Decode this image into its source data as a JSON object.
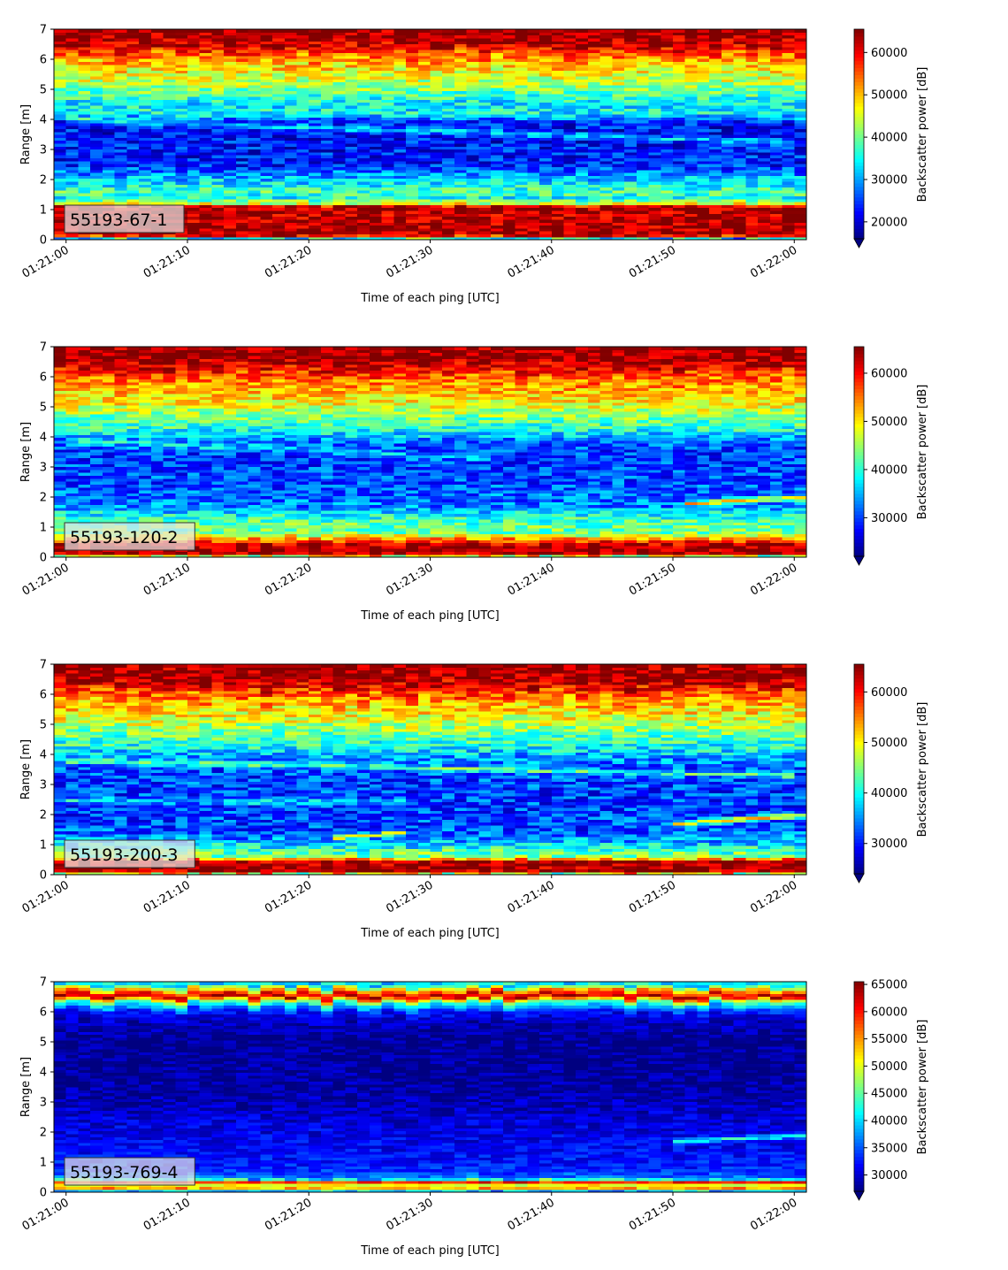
{
  "chart_data": [
    {
      "type": "heatmap",
      "label": "55193-67-1",
      "xlabel": "Time of each ping [UTC]",
      "ylabel": "Range [m]",
      "x_ticks": [
        "01:21:00",
        "01:21:10",
        "01:21:20",
        "01:21:30",
        "01:21:40",
        "01:21:50",
        "01:22:00"
      ],
      "x_range_seconds": [
        -1,
        61
      ],
      "y_ticks": [
        0,
        1,
        2,
        3,
        4,
        5,
        6,
        7
      ],
      "ylim": [
        0,
        7
      ],
      "colorbar": {
        "label": "Backscatter power [dB]",
        "vmin": 16000,
        "vmax": 65500,
        "ticks": [
          20000,
          30000,
          40000,
          50000,
          60000
        ],
        "extend": "min"
      },
      "profile_stops": [
        [
          0.0,
          0.1
        ],
        [
          0.15,
          0.96
        ],
        [
          0.85,
          0.94
        ],
        [
          1.1,
          0.97
        ],
        [
          1.2,
          0.6
        ],
        [
          1.4,
          0.38
        ],
        [
          1.6,
          0.45
        ],
        [
          1.9,
          0.35
        ],
        [
          2.1,
          0.3
        ],
        [
          2.5,
          0.15
        ],
        [
          3.5,
          0.13
        ],
        [
          3.9,
          0.14
        ],
        [
          4.2,
          0.38
        ],
        [
          4.5,
          0.36
        ],
        [
          4.8,
          0.43
        ],
        [
          5.1,
          0.53
        ],
        [
          5.5,
          0.6
        ],
        [
          5.9,
          0.7
        ],
        [
          6.2,
          0.8
        ],
        [
          6.4,
          0.92
        ],
        [
          7.0,
          0.99
        ]
      ],
      "ridges": [
        {
          "t0": 0,
          "r0": 4.0,
          "t1": 60,
          "r1": 3.25,
          "amp": 0.18,
          "width": 0.1
        }
      ],
      "noise": 0.12,
      "seed": 11
    },
    {
      "type": "heatmap",
      "label": "55193-120-2",
      "xlabel": "Time of each ping [UTC]",
      "ylabel": "Range [m]",
      "x_ticks": [
        "01:21:00",
        "01:21:10",
        "01:21:20",
        "01:21:30",
        "01:21:40",
        "01:21:50",
        "01:22:00"
      ],
      "x_range_seconds": [
        -1,
        61
      ],
      "y_ticks": [
        0,
        1,
        2,
        3,
        4,
        5,
        6,
        7
      ],
      "ylim": [
        0,
        7
      ],
      "colorbar": {
        "label": "Backscatter power [dB]",
        "vmin": 22000,
        "vmax": 65500,
        "ticks": [
          30000,
          40000,
          50000,
          60000
        ],
        "extend": "min"
      },
      "profile_stops": [
        [
          0.0,
          0.3
        ],
        [
          0.1,
          0.96
        ],
        [
          0.4,
          0.96
        ],
        [
          0.6,
          0.75
        ],
        [
          0.8,
          0.5
        ],
        [
          1.2,
          0.45
        ],
        [
          1.5,
          0.35
        ],
        [
          1.7,
          0.25
        ],
        [
          2.5,
          0.2
        ],
        [
          3.5,
          0.18
        ],
        [
          3.9,
          0.25
        ],
        [
          4.3,
          0.42
        ],
        [
          4.7,
          0.5
        ],
        [
          5.1,
          0.62
        ],
        [
          5.6,
          0.7
        ],
        [
          6.0,
          0.78
        ],
        [
          6.3,
          0.9
        ],
        [
          6.6,
          0.98
        ],
        [
          7.0,
          0.97
        ]
      ],
      "ridges": [
        {
          "t0": 0,
          "r0": 3.9,
          "t1": 35,
          "r1": 3.3,
          "amp": 0.12,
          "width": 0.12
        },
        {
          "t0": 51,
          "r0": 1.8,
          "t1": 61,
          "r1": 2.0,
          "amp": 0.45,
          "width": 0.08
        }
      ],
      "noise": 0.12,
      "seed": 23
    },
    {
      "type": "heatmap",
      "label": "55193-200-3",
      "xlabel": "Time of each ping [UTC]",
      "ylabel": "Range [m]",
      "x_ticks": [
        "01:21:00",
        "01:21:10",
        "01:21:20",
        "01:21:30",
        "01:21:40",
        "01:21:50",
        "01:22:00"
      ],
      "x_range_seconds": [
        -1,
        61
      ],
      "y_ticks": [
        0,
        1,
        2,
        3,
        4,
        5,
        6,
        7
      ],
      "ylim": [
        0,
        7
      ],
      "colorbar": {
        "label": "Backscatter power [dB]",
        "vmin": 24000,
        "vmax": 65500,
        "ticks": [
          30000,
          40000,
          50000,
          60000
        ],
        "extend": "min"
      },
      "profile_stops": [
        [
          0.0,
          0.3
        ],
        [
          0.1,
          0.97
        ],
        [
          0.45,
          0.96
        ],
        [
          0.6,
          0.5
        ],
        [
          0.8,
          0.45
        ],
        [
          1.1,
          0.3
        ],
        [
          1.5,
          0.2
        ],
        [
          2.5,
          0.18
        ],
        [
          3.5,
          0.2
        ],
        [
          3.9,
          0.28
        ],
        [
          4.3,
          0.4
        ],
        [
          4.7,
          0.48
        ],
        [
          5.1,
          0.58
        ],
        [
          5.6,
          0.68
        ],
        [
          6.0,
          0.78
        ],
        [
          6.3,
          0.92
        ],
        [
          6.6,
          0.98
        ],
        [
          7.0,
          0.97
        ]
      ],
      "ridges": [
        {
          "t0": 0,
          "r0": 3.8,
          "t1": 60,
          "r1": 3.3,
          "amp": 0.25,
          "width": 0.08
        },
        {
          "t0": 22,
          "r0": 1.25,
          "t1": 28,
          "r1": 1.4,
          "amp": 0.5,
          "width": 0.06
        },
        {
          "t0": 50,
          "r0": 1.7,
          "t1": 61,
          "r1": 2.0,
          "amp": 0.45,
          "width": 0.08
        },
        {
          "t0": 0,
          "r0": 2.5,
          "t1": 28,
          "r1": 2.4,
          "amp": 0.15,
          "width": 0.1
        }
      ],
      "noise": 0.13,
      "seed": 37
    },
    {
      "type": "heatmap",
      "label": "55193-769-4",
      "xlabel": "Time of each ping [UTC]",
      "ylabel": "Range [m]",
      "x_ticks": [
        "01:21:00",
        "01:21:10",
        "01:21:20",
        "01:21:30",
        "01:21:40",
        "01:21:50",
        "01:22:00"
      ],
      "x_range_seconds": [
        -1,
        61
      ],
      "y_ticks": [
        0,
        1,
        2,
        3,
        4,
        5,
        6,
        7
      ],
      "ylim": [
        0,
        7
      ],
      "colorbar": {
        "label": "Backscatter power [dB]",
        "vmin": 27000,
        "vmax": 65500,
        "ticks": [
          30000,
          35000,
          40000,
          45000,
          50000,
          55000,
          60000,
          65000
        ],
        "extend": "min"
      },
      "profile_stops": [
        [
          0.0,
          0.15
        ],
        [
          0.15,
          0.75
        ],
        [
          0.25,
          0.6
        ],
        [
          0.35,
          0.9
        ],
        [
          0.45,
          0.25
        ],
        [
          0.8,
          0.15
        ],
        [
          1.5,
          0.12
        ],
        [
          2.5,
          0.08
        ],
        [
          3.5,
          0.03
        ],
        [
          5.0,
          0.02
        ],
        [
          5.7,
          0.06
        ],
        [
          6.0,
          0.15
        ],
        [
          6.3,
          0.45
        ],
        [
          6.5,
          0.96
        ],
        [
          6.7,
          0.7
        ],
        [
          6.9,
          0.3
        ],
        [
          7.0,
          0.4
        ]
      ],
      "ridges": [
        {
          "t0": 50,
          "r0": 1.7,
          "t1": 61,
          "r1": 1.9,
          "amp": 0.3,
          "width": 0.08
        }
      ],
      "noise": 0.07,
      "seed": 53
    }
  ]
}
